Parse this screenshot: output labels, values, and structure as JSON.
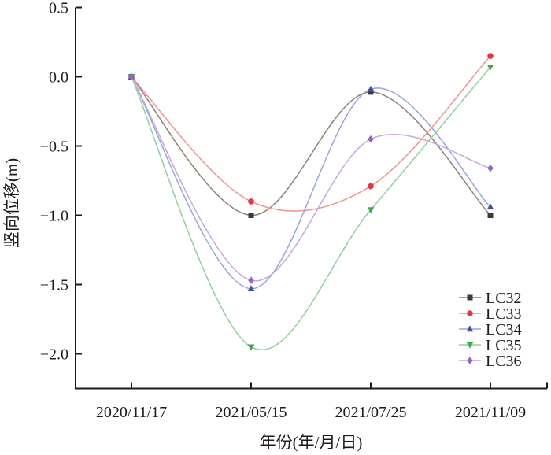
{
  "chart_data": {
    "type": "line",
    "title": "",
    "xlabel": "年份(年/月/日)",
    "ylabel": "竖向位移(m)",
    "x_tick_labels": [
      "2020/11/17",
      "2021/05/15",
      "2021/07/25",
      "2021/11/09"
    ],
    "y_tick_labels": [
      "0.5",
      "0.0",
      "−0.5",
      "−1.0",
      "−1.5",
      "−2.0"
    ],
    "y_ticks": [
      0.5,
      0.0,
      -0.5,
      -1.0,
      -1.5,
      -2.0
    ],
    "ylim": [
      -2.25,
      0.5
    ],
    "grid": false,
    "legend_position": "inside-lower-right",
    "axis_color": "#1a1a1a",
    "categories": [
      "2020/11/17",
      "2021/05/15",
      "2021/07/25",
      "2021/11/09"
    ],
    "series": [
      {
        "name": "LC32",
        "marker": "square",
        "color": "#3a3a3a",
        "line_color": "#8d8078",
        "values": [
          0.0,
          -1.0,
          -0.11,
          -1.0
        ]
      },
      {
        "name": "LC33",
        "marker": "circle",
        "color": "#e0393c",
        "line_color": "#f0948e",
        "values": [
          0.0,
          -0.9,
          -0.79,
          0.15
        ]
      },
      {
        "name": "LC34",
        "marker": "triangle-up",
        "color": "#3c53a4",
        "line_color": "#96a5da",
        "values": [
          0.0,
          -1.53,
          -0.09,
          -0.94
        ]
      },
      {
        "name": "LC35",
        "marker": "triangle-down",
        "color": "#3fa84f",
        "line_color": "#90d09a",
        "values": [
          0.0,
          -1.95,
          -0.96,
          0.07
        ]
      },
      {
        "name": "LC36",
        "marker": "diamond",
        "color": "#9b63c0",
        "line_color": "#c7a6de",
        "values": [
          0.0,
          -1.47,
          -0.45,
          -0.66
        ]
      }
    ]
  }
}
